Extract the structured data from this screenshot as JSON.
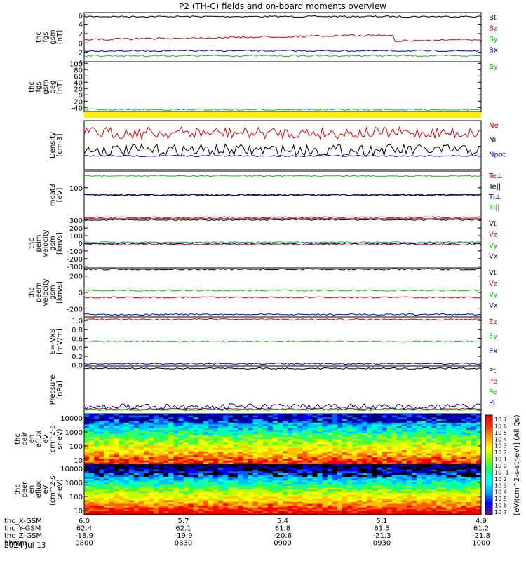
{
  "title": "P2 (TH-C) fields and on-board moments overview",
  "date_label": "2024 Jul 13",
  "orbit_rows": [
    {
      "label": "thc_X-GSM",
      "values": [
        "6.0",
        "5.7",
        "5.4",
        "5.1",
        "4.9"
      ]
    },
    {
      "label": "thc_Y-GSM",
      "values": [
        "62.4",
        "62.1",
        "61.8",
        "61.5",
        "61.2"
      ]
    },
    {
      "label": "thc_Z-GSM",
      "values": [
        "-18.9",
        "-19.9",
        "-20.6",
        "-21.3",
        "-21.8"
      ]
    },
    {
      "label": "hhmm",
      "values": [
        "0800",
        "0830",
        "0900",
        "0930",
        "1000"
      ]
    }
  ],
  "colorbar": {
    "label": "[eV/(cm^2-s-str-eV)] (All Qs)",
    "ticks": [
      "10^7",
      "10^6",
      "10^5",
      "10^4",
      "10^3",
      "10^2",
      "10^1",
      "10^0",
      "10^-1",
      "10^2",
      "10^3",
      "10^4",
      "10^5",
      "10^6",
      "10^7"
    ]
  },
  "chart_data": [
    {
      "type": "line",
      "ylabel": [
        "thc",
        "fgs",
        "gsm",
        "[nT]"
      ],
      "yticks": [
        "6",
        "4",
        "2",
        "0",
        "-2",
        "-4"
      ],
      "ylim": [
        -4,
        6.5
      ],
      "series": [
        {
          "name": "Bt",
          "color": "#000000"
        },
        {
          "name": "Bz",
          "color": "#dd0000"
        },
        {
          "name": "By",
          "color": "#00cc00"
        },
        {
          "name": "Bx",
          "color": "#0000cc"
        }
      ]
    },
    {
      "type": "line",
      "ylabel": [
        "thc",
        "fgs",
        "gsm",
        "deg",
        "[nT]"
      ],
      "yticks": [
        "100",
        "80",
        "60",
        "40",
        "20",
        "0",
        "-20",
        "-40"
      ],
      "ylim": [
        -55,
        105
      ],
      "series": [
        {
          "name": "By",
          "color": "#00cc00"
        }
      ]
    },
    {
      "type": "line",
      "ylabel": [
        "Density",
        "[cm-3]"
      ],
      "yticks": [],
      "log": true,
      "series": [
        {
          "name": "Ne",
          "color": "#dd0000"
        },
        {
          "name": "Ni",
          "color": "#000000"
        },
        {
          "name": "Npot",
          "color": "#0000cc"
        }
      ]
    },
    {
      "type": "line",
      "ylabel": [
        "moat3",
        "[eV]"
      ],
      "yticks": [
        "100"
      ],
      "log": true,
      "series": [
        {
          "name": "Te⊥",
          "color": "#dd0000"
        },
        {
          "name": "Te||",
          "color": "#000000"
        },
        {
          "name": "Ti⊥",
          "color": "#0000cc"
        },
        {
          "name": "Ti||",
          "color": "#00cc00"
        }
      ]
    },
    {
      "type": "line",
      "ylabel": [
        "thc",
        "peim",
        "velocity",
        "gsm",
        "[km/s]"
      ],
      "yticks": [
        "300",
        "200",
        "100",
        "0",
        "-100",
        "-200",
        "-300"
      ],
      "ylim": [
        -320,
        320
      ],
      "series": [
        {
          "name": "Vt",
          "color": "#000000"
        },
        {
          "name": "Vz",
          "color": "#dd0000"
        },
        {
          "name": "Vy",
          "color": "#00cc00"
        },
        {
          "name": "Vx",
          "color": "#0000cc"
        }
      ]
    },
    {
      "type": "line",
      "ylabel": [
        "thc",
        "peem",
        "velocity",
        "gsm",
        "[km/s]"
      ],
      "yticks": [
        "200",
        "0",
        "-200"
      ],
      "ylim": [
        -300,
        300
      ],
      "series": [
        {
          "name": "Vt",
          "color": "#000000"
        },
        {
          "name": "Vz",
          "color": "#dd0000"
        },
        {
          "name": "Vy",
          "color": "#00cc00"
        },
        {
          "name": "Vx",
          "color": "#0000cc"
        }
      ]
    },
    {
      "type": "line",
      "ylabel": [
        "E=-VxB",
        "[mV/m]"
      ],
      "yticks": [
        "1.0",
        "0.8",
        "0.6",
        "0.4",
        "0.2",
        "0.0"
      ],
      "ylim": [
        -0.02,
        1.08
      ],
      "series": [
        {
          "name": "Ez",
          "color": "#dd0000"
        },
        {
          "name": "Ey",
          "color": "#00cc00"
        },
        {
          "name": "Ex",
          "color": "#0000cc"
        }
      ]
    },
    {
      "type": "line",
      "ylabel": [
        "Pressure",
        "[nPa]"
      ],
      "yticks": [],
      "series": [
        {
          "name": "Pt",
          "color": "#000000"
        },
        {
          "name": "Pb",
          "color": "#dd0000"
        },
        {
          "name": "Pe",
          "color": "#00cc00"
        },
        {
          "name": "Pi",
          "color": "#0000cc"
        }
      ]
    },
    {
      "type": "heatmap",
      "ylabel": [
        "thc",
        "peir",
        "en",
        "eflux",
        "eV",
        "(cm^2-s-",
        "sr-eV)"
      ],
      "yticks": [
        "10000",
        "1000",
        "100",
        "10"
      ],
      "ylim": [
        5,
        20000
      ],
      "log": true
    },
    {
      "type": "heatmap",
      "ylabel": [
        "thc",
        "peer",
        "en",
        "eflux",
        "eV",
        "(cm^2-s-",
        "sr-eV)"
      ],
      "yticks": [
        "10000",
        "1000",
        "100",
        "10"
      ],
      "ylim": [
        5,
        20000
      ],
      "log": true
    }
  ]
}
